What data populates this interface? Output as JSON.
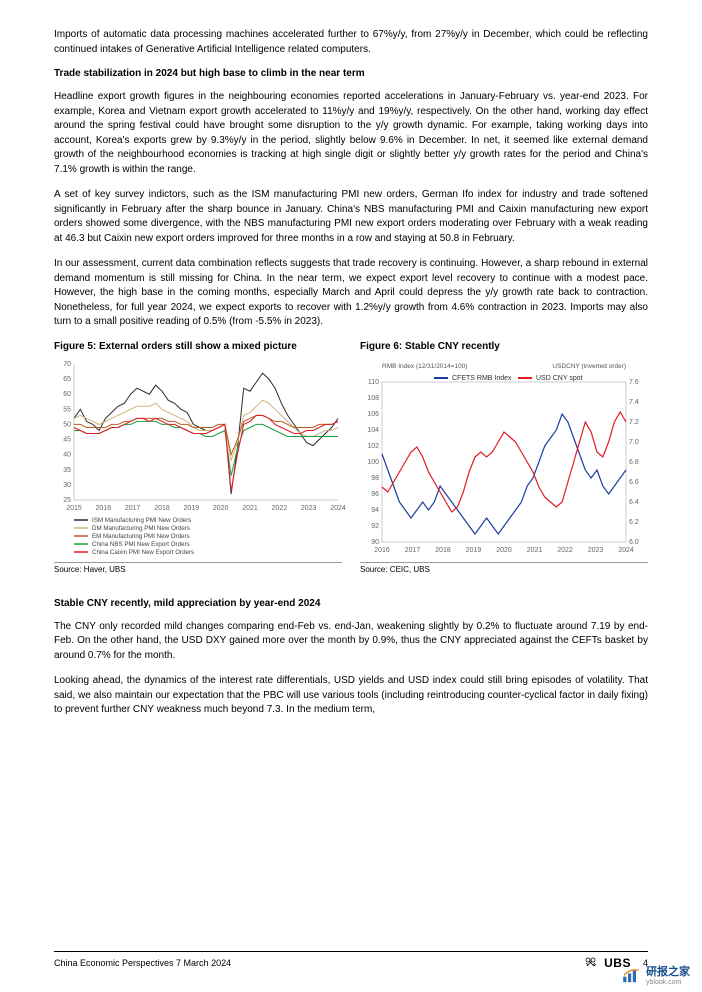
{
  "paragraphs": {
    "p1": "Imports of automatic data processing machines accelerated further to 67%y/y, from 27%y/y in December, which could be reflecting continued intakes of Generative Artificial Intelligence related computers.",
    "h1": "Trade stabilization in 2024 but high base to climb in the near term",
    "p2": "Headline export growth figures in the neighbouring economies reported accelerations in January-February vs. year-end 2023. For example, Korea and Vietnam export growth accelerated to 11%y/y and 19%y/y, respectively. On the other hand, working day effect around the spring festival could have brought some disruption to the y/y growth dynamic. For example, taking working days into account, Korea's exports grew by 9.3%y/y in the period, slightly below 9.6% in December. In net, it seemed like external demand growth of the neighbourhood economies is tracking at high single digit or slightly better y/y growth rates for the period and China's 7.1% growth is within the range.",
    "p3": "A set of key survey indictors, such as the ISM manufacturing PMI new orders, German Ifo index for industry and trade softened significantly in February after the sharp bounce in January. China's NBS manufacturing PMI and Caixin manufacturing new export orders showed some divergence, with the NBS manufacturing PMI new export orders moderating over February with a weak reading at 46.3 but Caixin new export orders improved for three months in a row and staying at 50.8 in February.",
    "p4": "In our assessment, current data combination reflects suggests that trade recovery is continuing. However, a sharp rebound in external demand momentum is still missing for China. In the near term, we expect export level recovery to continue with a modest pace. However, the high base in the coming months, especially March and April could depress the y/y growth rate back to contraction. Nonetheless, for full year 2024, we expect exports to recover with 1.2%y/y growth from 4.6% contraction in 2023. Imports may also turn to a small positive reading of 0.5% (from -5.5% in 2023).",
    "h2": "Stable CNY recently, mild appreciation by year-end 2024",
    "p5": "The CNY only recorded mild changes comparing end-Feb vs. end-Jan, weakening slightly by 0.2% to fluctuate around 7.19 by end-Feb. On the other hand, the USD DXY gained more over the month by 0.9%, thus the CNY appreciated against the CEFTs basket by around 0.7% for the month.",
    "p6": "Looking ahead, the dynamics of the interest rate differentials, USD yields and USD index could still bring episodes of volatility. That said, we also maintain our expectation that the PBC will use various tools (including reintroducing counter-cyclical factor in daily fixing) to prevent further CNY weakness much beyond 7.3. In the medium term,"
  },
  "figure5": {
    "title": "Figure 5: External orders still show a mixed picture",
    "source": "Source: Haver, UBS",
    "chart": {
      "type": "line",
      "ylim": [
        25,
        70
      ],
      "yticks": [
        25,
        30,
        35,
        40,
        45,
        50,
        55,
        60,
        65,
        70
      ],
      "xlim": [
        2015,
        2024
      ],
      "xticks": [
        2015,
        2016,
        2017,
        2018,
        2019,
        2020,
        2021,
        2022,
        2023,
        2024
      ],
      "background_color": "#ffffff",
      "grid_color": "none",
      "axis_color": "#999999",
      "tick_fontsize": 7,
      "legend_fontsize": 6.2,
      "line_width": 1.0,
      "series": [
        {
          "name": "ISM Manufacturing PMI New Orders",
          "color": "#2b2b2b",
          "data": [
            52,
            55,
            51,
            50,
            48,
            52,
            54,
            56,
            57,
            60,
            62,
            61,
            60,
            63,
            61,
            58,
            57,
            55,
            54,
            50,
            49,
            48,
            48,
            49,
            50,
            27,
            42,
            62,
            61,
            64,
            67,
            65,
            62,
            57,
            53,
            50,
            47,
            44,
            43,
            45,
            47,
            49,
            52
          ]
        },
        {
          "name": "DM Manufacturing PMI New Orders",
          "color": "#d1b37a",
          "data": [
            52,
            53,
            52,
            51,
            50,
            51,
            52,
            53,
            54,
            55,
            56,
            56,
            56,
            57,
            55,
            54,
            53,
            52,
            51,
            49,
            48,
            48,
            48,
            49,
            50,
            38,
            44,
            53,
            54,
            56,
            58,
            57,
            55,
            53,
            51,
            49,
            47,
            46,
            46,
            47,
            48,
            48,
            49
          ]
        },
        {
          "name": "EM Manufacturing PMI New Orders",
          "color": "#b85c1e",
          "data": [
            50,
            50,
            49,
            49,
            49,
            49,
            50,
            50,
            51,
            51,
            52,
            52,
            52,
            52,
            52,
            51,
            51,
            50,
            50,
            49,
            49,
            49,
            49,
            50,
            50,
            40,
            45,
            51,
            52,
            53,
            53,
            52,
            51,
            51,
            50,
            49,
            49,
            49,
            49,
            50,
            50,
            50,
            51
          ]
        },
        {
          "name": "China NBS PMI New Export Orders",
          "color": "#1a9e3e",
          "data": [
            48,
            48,
            47,
            47,
            47,
            48,
            49,
            49,
            50,
            50,
            51,
            51,
            51,
            51,
            50,
            50,
            49,
            49,
            48,
            47,
            47,
            46,
            46,
            47,
            48,
            33,
            42,
            48,
            49,
            50,
            50,
            49,
            48,
            47,
            46,
            46,
            46,
            46,
            46,
            46,
            46,
            46,
            46
          ]
        },
        {
          "name": "China Caixin PMI New Export Orders",
          "color": "#e01b24",
          "data": [
            49,
            48,
            47,
            47,
            47,
            48,
            49,
            49,
            50,
            51,
            52,
            52,
            51,
            52,
            51,
            50,
            50,
            49,
            48,
            47,
            47,
            47,
            48,
            49,
            50,
            28,
            40,
            50,
            51,
            53,
            53,
            52,
            50,
            49,
            48,
            47,
            47,
            48,
            48,
            49,
            50,
            50,
            51
          ]
        }
      ]
    }
  },
  "figure6": {
    "title": "Figure 6: Stable CNY recently",
    "source": "Source: CEIC, UBS",
    "chart": {
      "type": "line",
      "left_label": "RMB Index (12/31/2014=100)",
      "right_label": "USDCNY (inverted order)",
      "label_fontsize": 6.5,
      "left_ylim": [
        90,
        110
      ],
      "left_yticks": [
        90,
        92,
        94,
        96,
        98,
        100,
        102,
        104,
        106,
        108,
        110
      ],
      "right_ylim": [
        7.6,
        6.0
      ],
      "right_yticks": [
        6.0,
        6.2,
        6.4,
        6.6,
        6.8,
        7.0,
        7.2,
        7.4,
        7.6
      ],
      "xlim": [
        2016,
        2024
      ],
      "xticks": [
        2016,
        2017,
        2018,
        2019,
        2020,
        2021,
        2022,
        2023,
        2024
      ],
      "background_color": "#ffffff",
      "grid_color": "none",
      "axis_color": "#999999",
      "tick_fontsize": 7,
      "legend_fontsize": 7,
      "line_width": 1.2,
      "series": [
        {
          "name": "CFETS RMB Index",
          "color": "#1a3e9e",
          "axis": "left",
          "data": [
            101,
            99,
            97,
            95,
            94,
            93,
            94,
            95,
            94,
            95,
            97,
            96,
            95,
            94,
            93,
            92,
            91,
            92,
            93,
            92,
            91,
            92,
            93,
            94,
            95,
            97,
            98,
            100,
            102,
            103,
            104,
            106,
            105,
            103,
            101,
            99,
            98,
            99,
            97,
            96,
            97,
            98,
            99
          ]
        },
        {
          "name": "USD CNY spot",
          "color": "#e01b24",
          "axis": "right",
          "data": [
            6.55,
            6.5,
            6.6,
            6.7,
            6.8,
            6.9,
            6.95,
            6.85,
            6.7,
            6.6,
            6.5,
            6.4,
            6.3,
            6.35,
            6.5,
            6.7,
            6.85,
            6.9,
            6.85,
            6.9,
            7.0,
            7.1,
            7.05,
            7.0,
            6.9,
            6.8,
            6.7,
            6.55,
            6.45,
            6.4,
            6.35,
            6.4,
            6.6,
            6.8,
            7.0,
            7.2,
            7.1,
            6.9,
            6.85,
            7.0,
            7.2,
            7.3,
            7.2
          ]
        }
      ]
    }
  },
  "footer": {
    "left": "China Economic Perspectives  7 March 2024",
    "brand": "UBS",
    "page": "4"
  },
  "watermark": {
    "text": "研报之家",
    "url": "yblook.com"
  }
}
